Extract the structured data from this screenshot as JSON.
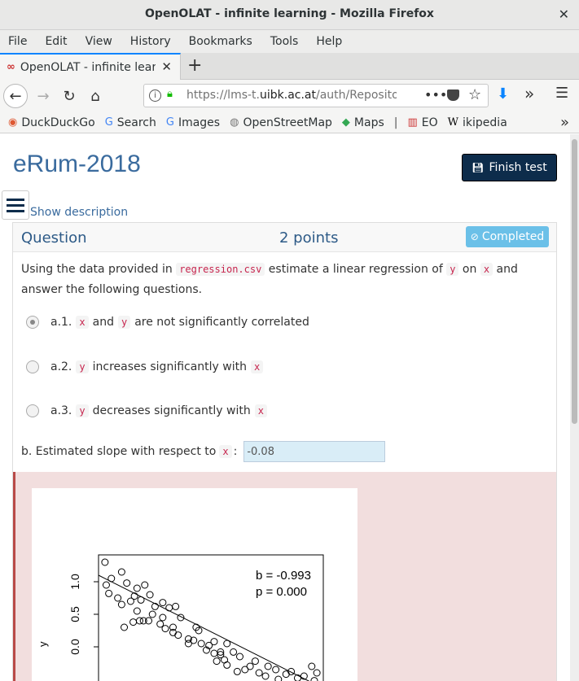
{
  "window": {
    "title": "OpenOLAT - infinite learning - Mozilla Firefox",
    "close": "✕"
  },
  "menu": [
    "File",
    "Edit",
    "View",
    "History",
    "Bookmarks",
    "Tools",
    "Help"
  ],
  "tab": {
    "label": "OpenOLAT - infinite learni",
    "close": "✕"
  },
  "nav": {
    "url_prefix": "https://lms-t.",
    "url_host": "uibk.ac.at",
    "url_rest": "/auth/RepositoryE"
  },
  "bookmarks": [
    {
      "label": "DuckDuckGo",
      "icon": "duckduckgo-icon",
      "glyph": "◉",
      "color": "#de5833"
    },
    {
      "label": "Search",
      "icon": "google-icon",
      "glyph": "G",
      "color": "#4285f4"
    },
    {
      "label": "Images",
      "icon": "google-icon",
      "glyph": "G",
      "color": "#4285f4"
    },
    {
      "label": "OpenStreetMap",
      "icon": "osm-icon",
      "glyph": "◍",
      "color": "#777777"
    },
    {
      "label": "Maps",
      "icon": "maps-icon",
      "glyph": "◆",
      "color": "#34a853"
    },
    {
      "label": "EO",
      "icon": "eo-icon",
      "glyph": "▥",
      "color": "#cc3333"
    },
    {
      "label": "ikipedia",
      "icon": "wikipedia-icon",
      "glyph": "W",
      "color": "#000000"
    }
  ],
  "page": {
    "course_title": "eRum-2018",
    "finish_button": "Finish test",
    "show_description": "Show description"
  },
  "question": {
    "title": "Question",
    "points": "2 points",
    "status": "Completed",
    "text_1": "Using the data provided in ",
    "file_code": "regression.csv",
    "text_2": " estimate a linear regression of ",
    "y_code": "y",
    "text_3": " on ",
    "x_code": "x",
    "text_4": " and answer the following questions.",
    "options": [
      {
        "prefix": "a.1.",
        "parts": [
          "x",
          "and",
          "y",
          "are not significantly correlated"
        ],
        "checked": true
      },
      {
        "prefix": "a.2.",
        "parts": [
          "y",
          "increases significantly with",
          "x"
        ],
        "checked": false
      },
      {
        "prefix": "a.3.",
        "parts": [
          "y",
          "decreases significantly with",
          "x"
        ],
        "checked": false
      }
    ],
    "slope_label": "b. Estimated slope with respect to ",
    "slope_code": "x",
    "slope_colon": ":",
    "slope_value": "-0.08"
  },
  "plot": {
    "ylabel": "y",
    "yticks": [
      "1.0",
      "0.5",
      "0.0"
    ],
    "annot_b": "b = -0.993",
    "annot_p": "p = 0.000"
  },
  "chart_data": {
    "type": "scatter",
    "ylabel": "y",
    "yticks": [
      1.0,
      0.5,
      0.0
    ],
    "annotations": [
      "b = -0.993",
      "p = 0.000"
    ],
    "points": [
      [
        0.05,
        1.3
      ],
      [
        0.18,
        1.15
      ],
      [
        0.1,
        1.05
      ],
      [
        0.06,
        0.95
      ],
      [
        0.08,
        0.82
      ],
      [
        0.22,
        0.98
      ],
      [
        0.3,
        0.9
      ],
      [
        0.36,
        0.95
      ],
      [
        0.28,
        0.78
      ],
      [
        0.33,
        0.72
      ],
      [
        0.25,
        0.7
      ],
      [
        0.18,
        0.65
      ],
      [
        0.4,
        0.8
      ],
      [
        0.44,
        0.62
      ],
      [
        0.5,
        0.68
      ],
      [
        0.55,
        0.6
      ],
      [
        0.3,
        0.55
      ],
      [
        0.42,
        0.5
      ],
      [
        0.5,
        0.45
      ],
      [
        0.35,
        0.4
      ],
      [
        0.27,
        0.38
      ],
      [
        0.32,
        0.4
      ],
      [
        0.39,
        0.4
      ],
      [
        0.48,
        0.35
      ],
      [
        0.58,
        0.3
      ],
      [
        0.6,
        0.62
      ],
      [
        0.64,
        0.45
      ],
      [
        0.58,
        0.22
      ],
      [
        0.62,
        0.18
      ],
      [
        0.7,
        0.12
      ],
      [
        0.76,
        0.3
      ],
      [
        0.78,
        0.25
      ],
      [
        0.74,
        0.1
      ],
      [
        0.8,
        0.05
      ],
      [
        0.86,
        0.02
      ],
      [
        0.9,
        0.08
      ],
      [
        0.84,
        -0.05
      ],
      [
        0.9,
        -0.1
      ],
      [
        0.95,
        -0.12
      ],
      [
        0.98,
        -0.2
      ],
      [
        0.92,
        -0.22
      ],
      [
        1.0,
        -0.28
      ],
      [
        1.05,
        -0.08
      ],
      [
        1.1,
        -0.15
      ],
      [
        1.14,
        -0.35
      ],
      [
        1.18,
        -0.3
      ],
      [
        1.08,
        -0.38
      ],
      [
        1.22,
        -0.22
      ],
      [
        1.25,
        -0.4
      ],
      [
        1.3,
        -0.45
      ],
      [
        1.32,
        -0.3
      ],
      [
        1.38,
        -0.35
      ],
      [
        1.4,
        -0.5
      ],
      [
        1.46,
        -0.42
      ],
      [
        1.5,
        -0.38
      ],
      [
        1.55,
        -0.48
      ],
      [
        1.6,
        -0.45
      ],
      [
        1.68,
        -0.52
      ],
      [
        1.7,
        -0.4
      ],
      [
        1.66,
        -0.3
      ],
      [
        0.2,
        0.3
      ],
      [
        0.7,
        0.05
      ],
      [
        1.0,
        0.05
      ],
      [
        0.15,
        0.75
      ],
      [
        0.52,
        0.28
      ],
      [
        0.95,
        -0.08
      ]
    ],
    "fit_line": {
      "slope": -0.993,
      "intercept": 1.1
    }
  }
}
